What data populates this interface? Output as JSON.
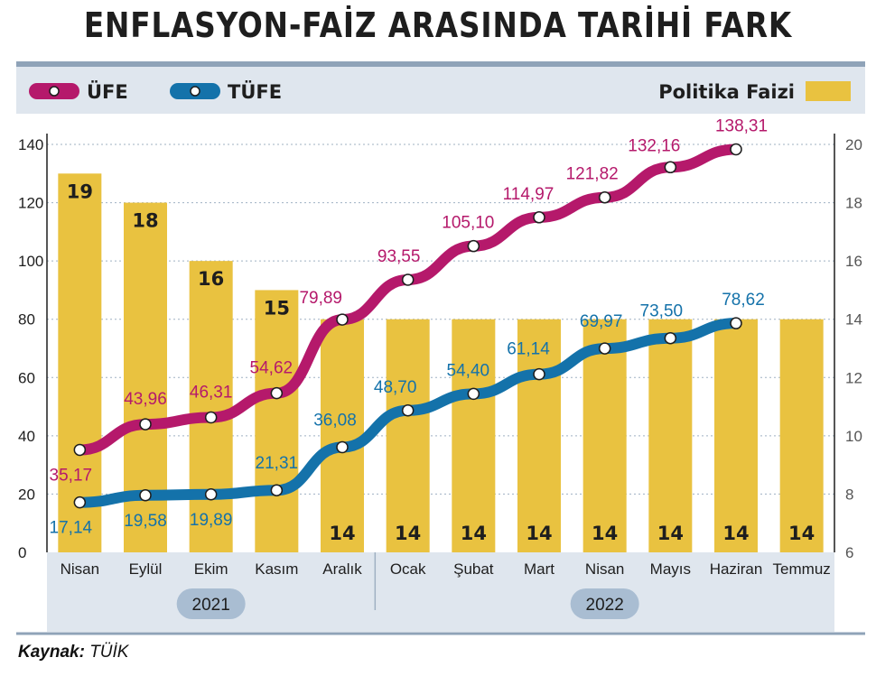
{
  "title": "ENFLASYON-FAİZ ARASINDA TARİHİ FARK",
  "source": {
    "label": "Kaynak:",
    "value": "TÜİK"
  },
  "legend": {
    "ufe": "ÜFE",
    "tufe": "TÜFE",
    "rate": "Politika Faizi"
  },
  "colors": {
    "ufe": "#b5196b",
    "tufe": "#1472aa",
    "bar": "#e9c240",
    "band": "#dfe6ee",
    "frame": "#8fa3b8"
  },
  "chart_data": {
    "type": "bar+line",
    "categories": [
      "Nisan",
      "Eylül",
      "Ekim",
      "Kasım",
      "Aralık",
      "Ocak",
      "Şubat",
      "Mart",
      "Nisan",
      "Mayıs",
      "Haziran",
      "Temmuz"
    ],
    "years": [
      {
        "label": "2021",
        "from": 0,
        "to": 4
      },
      {
        "label": "2022",
        "from": 5,
        "to": 11
      }
    ],
    "left_axis": {
      "ylim": [
        0,
        140
      ],
      "ticks": [
        0,
        20,
        40,
        60,
        80,
        100,
        120,
        140
      ]
    },
    "right_axis": {
      "ylim": [
        6,
        20
      ],
      "ticks": [
        6,
        8,
        10,
        12,
        14,
        16,
        18,
        20
      ]
    },
    "bars": {
      "name": "Politika Faizi",
      "axis": "right",
      "values": [
        19,
        18,
        16,
        15,
        14,
        14,
        14,
        14,
        14,
        14,
        14,
        14
      ],
      "labels": [
        "19",
        "18",
        "16",
        "15",
        "14",
        "14",
        "14",
        "14",
        "14",
        "14",
        "14",
        "14"
      ]
    },
    "series": [
      {
        "name": "ÜFE",
        "axis": "left",
        "values": [
          35.17,
          43.96,
          46.31,
          54.62,
          79.89,
          93.55,
          105.1,
          114.97,
          121.82,
          132.16,
          138.31,
          null
        ],
        "labels": [
          "35,17",
          "43,96",
          "46,31",
          "54,62",
          "79,89",
          "93,55",
          "105,10",
          "114,97",
          "121,82",
          "132,16",
          "138,31",
          ""
        ]
      },
      {
        "name": "TÜFE",
        "axis": "left",
        "values": [
          17.14,
          19.58,
          19.89,
          21.31,
          36.08,
          48.7,
          54.4,
          61.14,
          69.97,
          73.5,
          78.62,
          null
        ],
        "labels": [
          "17,14",
          "19,58",
          "19,89",
          "21,31",
          "36,08",
          "48,70",
          "54,40",
          "61,14",
          "69,97",
          "73,50",
          "78,62",
          ""
        ]
      }
    ]
  }
}
